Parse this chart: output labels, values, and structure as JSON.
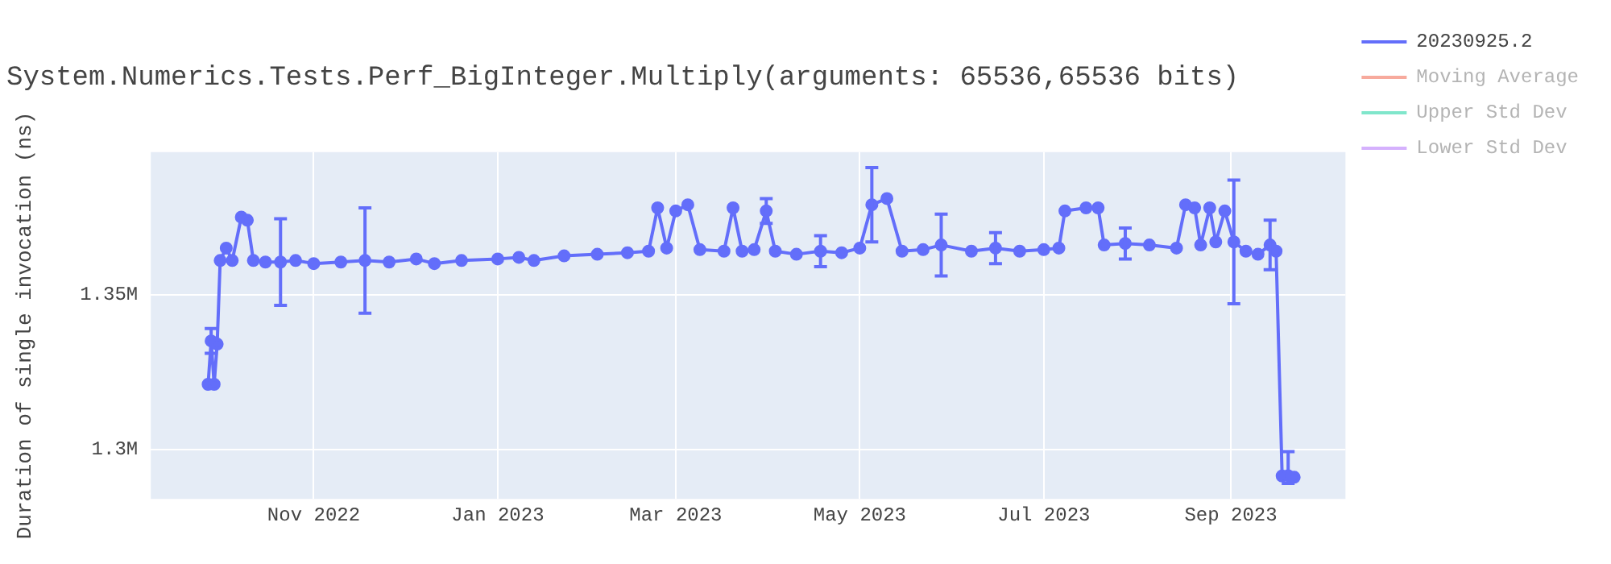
{
  "chart_data": {
    "type": "line",
    "title": "System.Numerics.Tests.Perf_BigInteger.Multiply(arguments: 65536,65536 bits)",
    "ylabel": "Duration of single invocation (ns)",
    "x": [
      "2022-09-27",
      "2022-09-28",
      "2022-09-29",
      "2022-09-30",
      "2022-10-01",
      "2022-10-03",
      "2022-10-05",
      "2022-10-08",
      "2022-10-10",
      "2022-10-12",
      "2022-10-16",
      "2022-10-21",
      "2022-10-26",
      "2022-11-01",
      "2022-11-10",
      "2022-11-18",
      "2022-11-26",
      "2022-12-05",
      "2022-12-11",
      "2022-12-20",
      "2023-01-01",
      "2023-01-08",
      "2023-01-13",
      "2023-01-23",
      "2023-02-03",
      "2023-02-13",
      "2023-02-20",
      "2023-02-23",
      "2023-02-26",
      "2023-03-01",
      "2023-03-05",
      "2023-03-09",
      "2023-03-17",
      "2023-03-20",
      "2023-03-23",
      "2023-03-27",
      "2023-03-31",
      "2023-04-03",
      "2023-04-10",
      "2023-04-18",
      "2023-04-25",
      "2023-05-01",
      "2023-05-05",
      "2023-05-10",
      "2023-05-15",
      "2023-05-22",
      "2023-05-28",
      "2023-06-07",
      "2023-06-15",
      "2023-06-23",
      "2023-07-01",
      "2023-07-06",
      "2023-07-08",
      "2023-07-15",
      "2023-07-19",
      "2023-07-21",
      "2023-07-28",
      "2023-08-05",
      "2023-08-14",
      "2023-08-17",
      "2023-08-20",
      "2023-08-22",
      "2023-08-25",
      "2023-08-27",
      "2023-08-30",
      "2023-09-02",
      "2023-09-06",
      "2023-09-10",
      "2023-09-14",
      "2023-09-16",
      "2023-09-18",
      "2023-09-20",
      "2023-09-22"
    ],
    "series": [
      {
        "name": "20230925.2",
        "color": "#636efa",
        "values": [
          1321000,
          1335000,
          1321000,
          1334000,
          1361000,
          1365000,
          1361000,
          1375000,
          1374000,
          1361000,
          1360500,
          1360500,
          1361000,
          1360000,
          1360500,
          1361000,
          1360500,
          1361500,
          1360000,
          1361000,
          1361500,
          1362000,
          1361000,
          1362500,
          1363000,
          1363500,
          1364000,
          1378000,
          1365000,
          1377000,
          1379000,
          1364500,
          1364000,
          1378000,
          1364000,
          1364500,
          1377000,
          1364000,
          1363000,
          1364000,
          1363500,
          1365000,
          1379000,
          1381000,
          1364000,
          1364500,
          1366000,
          1364000,
          1365000,
          1364000,
          1364500,
          1365000,
          1377000,
          1378000,
          1378000,
          1366000,
          1366500,
          1366000,
          1365000,
          1379000,
          1378000,
          1366000,
          1378000,
          1367000,
          1377000,
          1367000,
          1364000,
          1363000,
          1366000,
          1364000,
          1291400,
          1291500,
          1291000
        ],
        "errors": [
          null,
          4000,
          null,
          null,
          null,
          null,
          null,
          null,
          null,
          null,
          null,
          14000,
          null,
          null,
          null,
          17000,
          null,
          null,
          null,
          null,
          null,
          null,
          null,
          null,
          null,
          null,
          null,
          null,
          null,
          null,
          null,
          null,
          null,
          null,
          null,
          null,
          4000,
          null,
          null,
          5000,
          null,
          null,
          12000,
          null,
          null,
          null,
          10000,
          null,
          5000,
          null,
          null,
          null,
          null,
          null,
          null,
          null,
          5000,
          null,
          null,
          null,
          null,
          null,
          null,
          null,
          null,
          20000,
          null,
          null,
          8000,
          null,
          null,
          [
            1289000,
            1299300
          ],
          null
        ]
      },
      {
        "name": "Moving Average",
        "color": "#f7aa9d",
        "values": [
          null,
          null,
          null,
          null,
          null,
          null,
          null,
          null,
          null,
          null,
          null,
          null,
          null,
          null,
          null,
          null,
          null,
          null,
          null,
          null,
          null,
          null,
          null,
          null,
          null,
          null,
          null,
          null,
          null,
          null,
          null,
          null,
          null,
          null,
          null,
          null,
          null,
          null,
          null,
          null,
          null,
          null,
          null,
          null,
          null,
          null,
          null,
          null,
          null,
          null,
          null,
          null,
          null,
          null,
          null,
          null,
          null,
          null,
          null,
          null,
          null,
          null,
          null,
          null,
          null,
          null,
          null,
          null,
          null,
          null,
          null,
          null,
          null
        ]
      },
      {
        "name": "Upper Std Dev",
        "color": "#80e6cb",
        "values": [
          null,
          null,
          null,
          null,
          null,
          null,
          null,
          null,
          null,
          null,
          null,
          null,
          null,
          null,
          null,
          null,
          null,
          null,
          null,
          null,
          null,
          null,
          null,
          null,
          null,
          null,
          null,
          null,
          null,
          null,
          null,
          null,
          null,
          null,
          null,
          null,
          null,
          null,
          null,
          null,
          null,
          null,
          null,
          null,
          null,
          null,
          null,
          null,
          null,
          null,
          null,
          null,
          null,
          null,
          null,
          null,
          null,
          null,
          null,
          null,
          null,
          null,
          null,
          null,
          null,
          null,
          null,
          null,
          null,
          null,
          null,
          null,
          null
        ]
      },
      {
        "name": "Lower Std Dev",
        "color": "#d5b1fd",
        "values": [
          null,
          null,
          null,
          null,
          null,
          null,
          null,
          null,
          null,
          null,
          null,
          null,
          null,
          null,
          null,
          null,
          null,
          null,
          null,
          null,
          null,
          null,
          null,
          null,
          null,
          null,
          null,
          null,
          null,
          null,
          null,
          null,
          null,
          null,
          null,
          null,
          null,
          null,
          null,
          null,
          null,
          null,
          null,
          null,
          null,
          null,
          null,
          null,
          null,
          null,
          null,
          null,
          null,
          null,
          null,
          null,
          null,
          null,
          null,
          null,
          null,
          null,
          null,
          null,
          null,
          null,
          null,
          null,
          null,
          null,
          null,
          null,
          null
        ]
      }
    ],
    "xlim": [
      "2022-09-08",
      "2023-10-09"
    ],
    "xticks": [
      {
        "value": "2022-11-01",
        "label": "Nov 2022"
      },
      {
        "value": "2023-01-01",
        "label": "Jan 2023"
      },
      {
        "value": "2023-03-01",
        "label": "Mar 2023"
      },
      {
        "value": "2023-05-01",
        "label": "May 2023"
      },
      {
        "value": "2023-07-01",
        "label": "Jul 2023"
      },
      {
        "value": "2023-09-01",
        "label": "Sep 2023"
      }
    ],
    "ylim": [
      1284000,
      1396000
    ],
    "yticks": [
      {
        "value": 1300000,
        "label": "1.3M"
      },
      {
        "value": 1350000,
        "label": "1.35M"
      }
    ],
    "grid": true,
    "legend": "top right",
    "marker": "circle",
    "line_style": "solid"
  }
}
